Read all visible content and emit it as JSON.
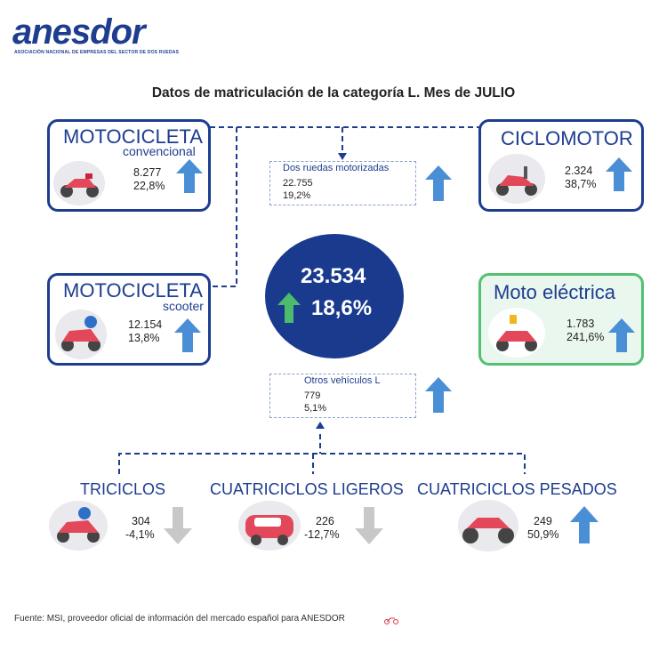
{
  "logo": {
    "name": "anesdor",
    "subtitle": "ASOCIACIÓN NACIONAL DE EMPRESAS DEL SECTOR DE DOS RUEDAS"
  },
  "title": "Datos de matriculación de la categoría L. Mes de JULIO",
  "center": {
    "value": "23.534",
    "percent": "18,6%",
    "arrow": "up"
  },
  "cards": {
    "moto_conv": {
      "title": "MOTOCICLETA",
      "subtitle": "convencional",
      "value": "8.277",
      "percent": "22,8%",
      "arrow": "up",
      "icon": "motorcycle-icon"
    },
    "ciclomotor": {
      "title": "CICLOMOTOR",
      "value": "2.324",
      "percent": "38,7%",
      "arrow": "up",
      "icon": "moped-icon"
    },
    "moto_scooter": {
      "title": "MOTOCICLETA",
      "subtitle": "scooter",
      "value": "12.154",
      "percent": "13,8%",
      "arrow": "up",
      "icon": "scooter-icon"
    },
    "moto_electrica": {
      "title": "Moto eléctrica",
      "value": "1.783",
      "percent": "241,6%",
      "arrow": "up",
      "icon": "electric-scooter-icon"
    }
  },
  "boxes": {
    "dos_ruedas": {
      "label": "Dos ruedas motorizadas",
      "value": "22.755",
      "percent": "19,2%",
      "arrow": "up"
    },
    "otros": {
      "label": "Otros vehículos L",
      "value": "779",
      "percent": "5,1%",
      "arrow": "up"
    }
  },
  "bottom": {
    "triciclos": {
      "title": "TRICICLOS",
      "value": "304",
      "percent": "-4,1%",
      "arrow": "down",
      "icon": "tricycle-icon"
    },
    "cuatri_ligeros": {
      "title": "CUATRICICLOS LIGEROS",
      "value": "226",
      "percent": "-12,7%",
      "arrow": "down",
      "icon": "microcar-icon"
    },
    "cuatri_pesados": {
      "title": "CUATRICICLOS PESADOS",
      "value": "249",
      "percent": "50,9%",
      "arrow": "up",
      "icon": "quad-icon"
    }
  },
  "footer": "Fuente: MSI, proveedor oficial de información del mercado español para ANESDOR",
  "colors": {
    "navy": "#1d3d90",
    "arrow_up": "#4a8fd6",
    "arrow_down": "#c8c8c8",
    "arrow_center": "#4cbb6c",
    "green_border": "#54c072"
  }
}
